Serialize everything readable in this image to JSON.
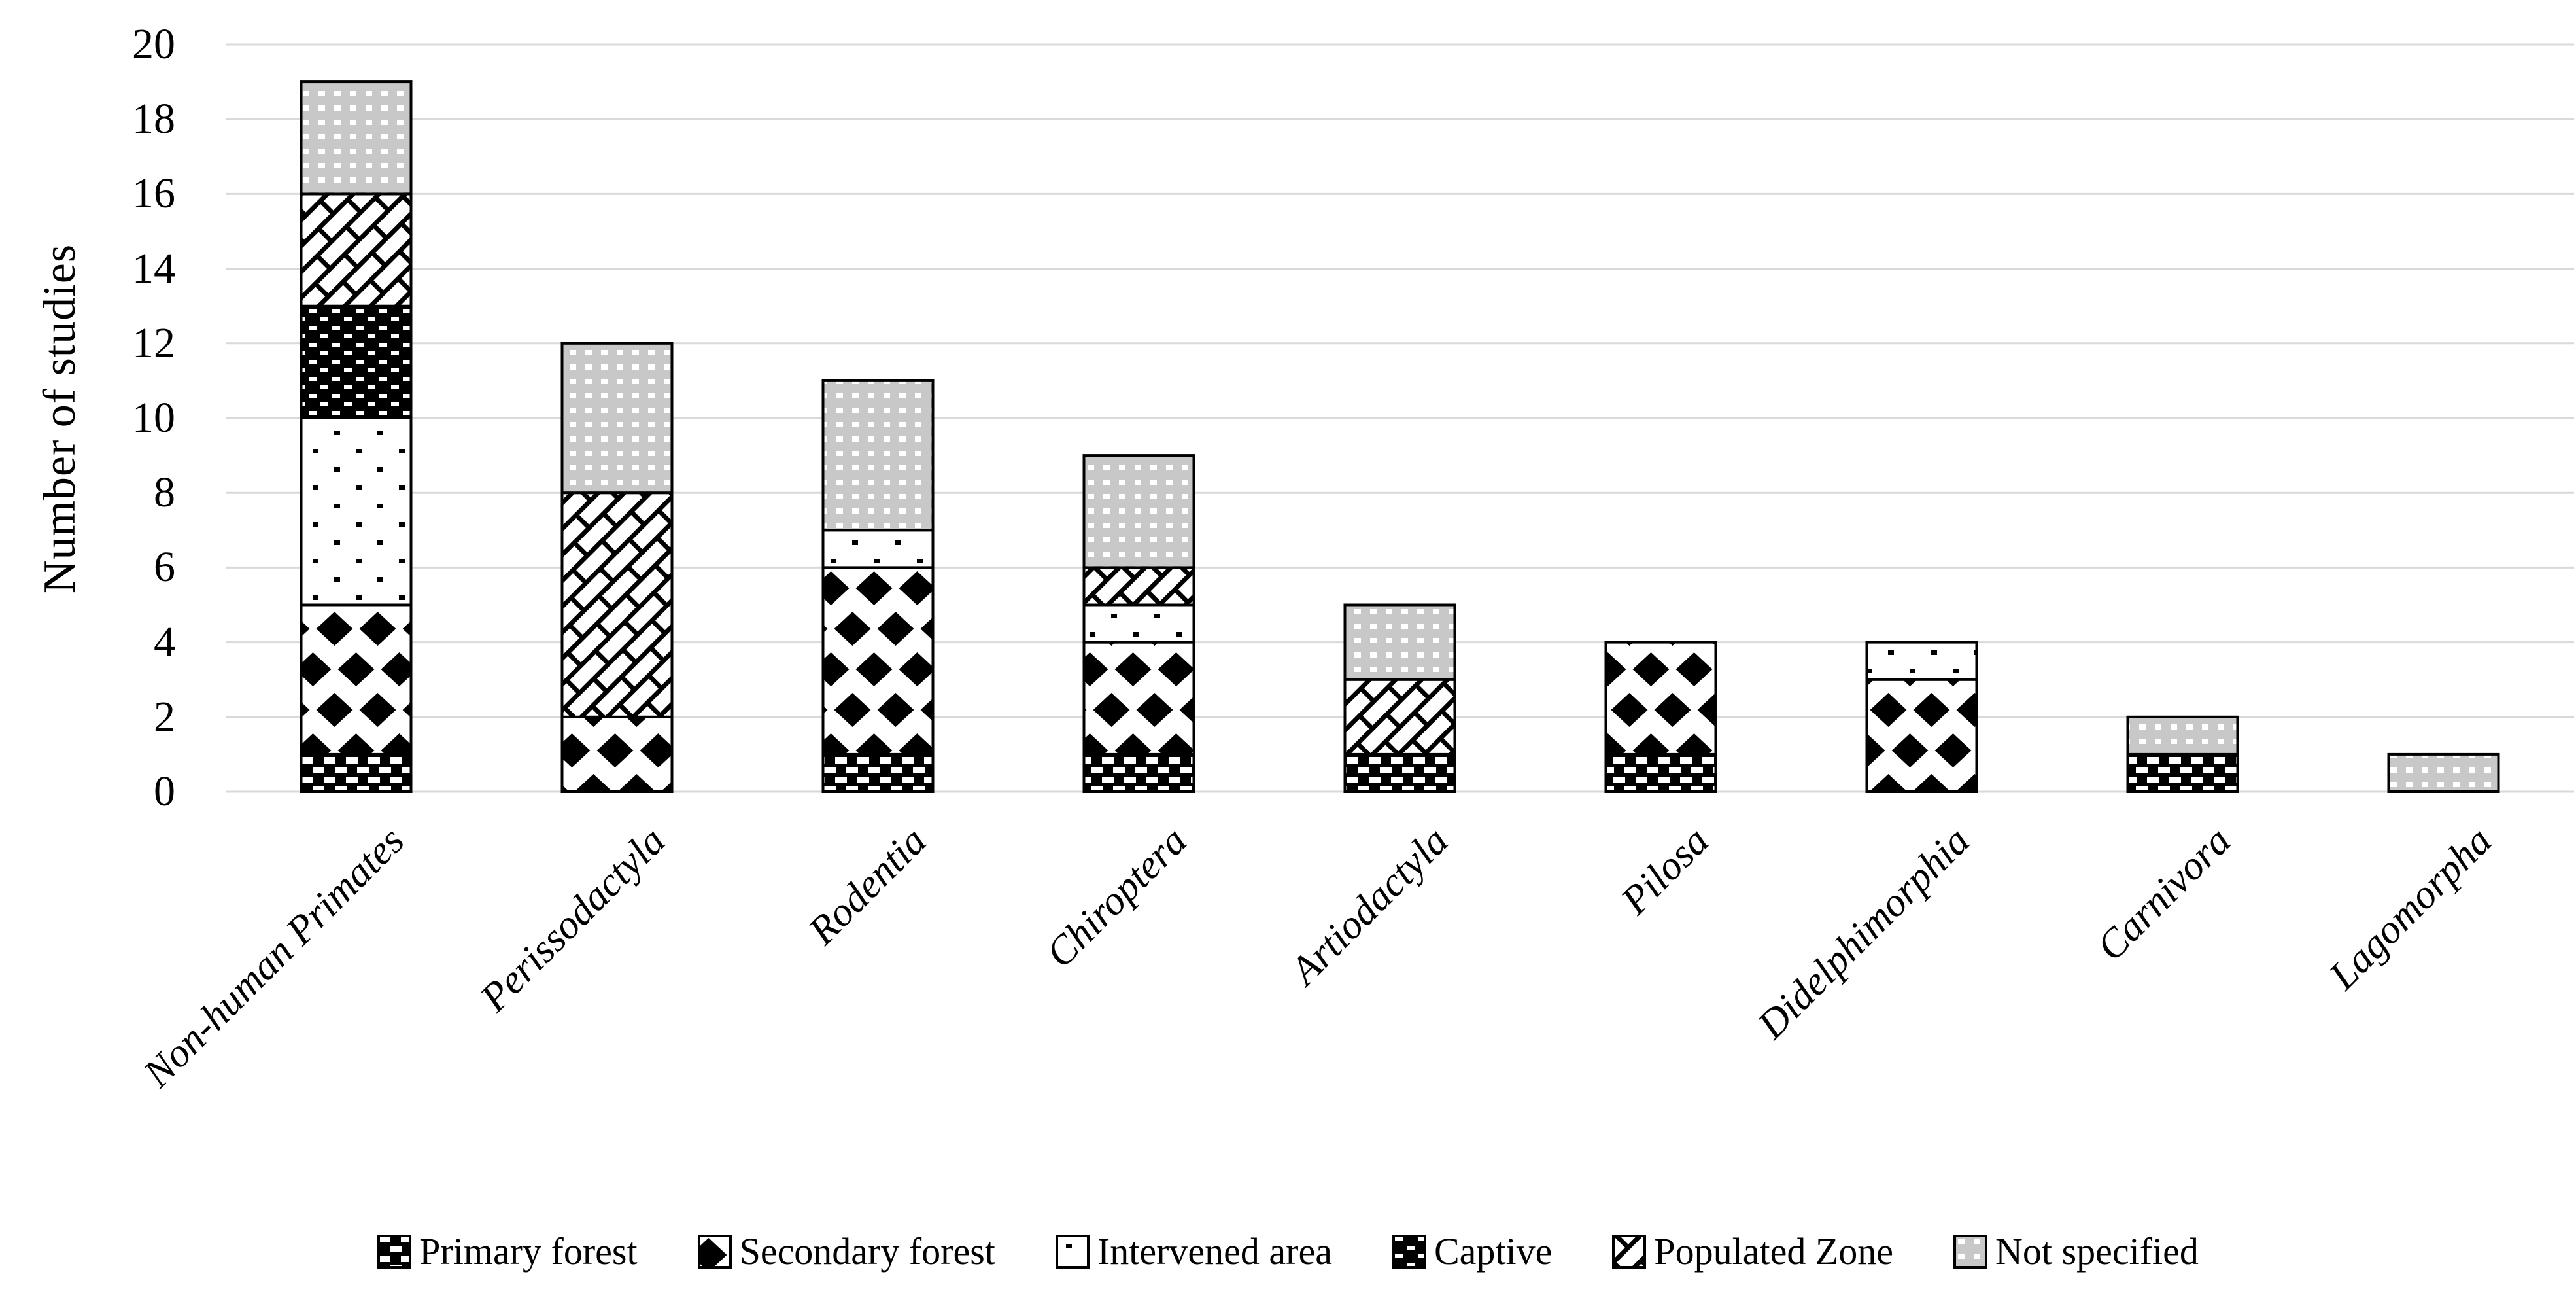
{
  "figure": {
    "background": "#ffffff"
  },
  "chart_data": {
    "type": "bar",
    "stacked": true,
    "title": "",
    "xlabel": "",
    "ylabel": "Number of studies",
    "ylim": [
      0,
      20
    ],
    "ytick_step": 2,
    "grid": "horizontal",
    "legend_position": "bottom",
    "categories": [
      "Non-human Primates",
      "Perissodactyla",
      "Rodentia",
      "Chiroptera",
      "Artiodactyla",
      "Pilosa",
      "Didelphimorphia",
      "Carnivora",
      "Lagomorpha"
    ],
    "series": [
      {
        "name": "Primary forest",
        "pattern": "primary",
        "values": [
          1,
          0,
          1,
          1,
          1,
          1,
          0,
          1,
          0
        ]
      },
      {
        "name": "Secondary forest",
        "pattern": "secondary",
        "values": [
          4,
          2,
          5,
          3,
          0,
          3,
          3,
          0,
          0
        ]
      },
      {
        "name": "Intervened area",
        "pattern": "intervened",
        "values": [
          5,
          0,
          1,
          1,
          0,
          0,
          1,
          0,
          0
        ]
      },
      {
        "name": "Captive",
        "pattern": "captive",
        "values": [
          3,
          0,
          0,
          0,
          0,
          0,
          0,
          0,
          0
        ]
      },
      {
        "name": "Populated Zone",
        "pattern": "populated",
        "values": [
          3,
          6,
          0,
          1,
          2,
          0,
          0,
          0,
          0
        ]
      },
      {
        "name": "Not specified",
        "pattern": "notspec",
        "values": [
          3,
          4,
          4,
          3,
          2,
          0,
          0,
          1,
          1
        ]
      }
    ],
    "totals": [
      19,
      12,
      11,
      9,
      5,
      4,
      4,
      2,
      1
    ],
    "colors": {
      "ink": "#000000",
      "gridline": "#d9d9d9",
      "gray_fill": "#c8c8c8",
      "background": "#ffffff"
    }
  }
}
